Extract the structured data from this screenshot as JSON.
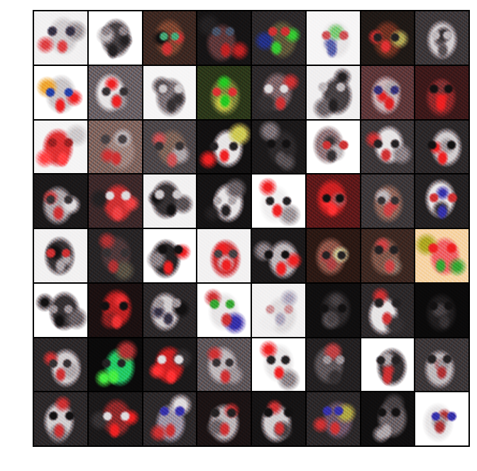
{
  "grid": {
    "rows": 8,
    "cols": 8,
    "tiles": [
      {
        "bg": "#f2f2f2",
        "face": "#cfcfcf",
        "a1": "#d44",
        "a2": "#334",
        "a3": "#999"
      },
      {
        "bg": "#ffffff",
        "face": "#444444",
        "a1": "#222",
        "a2": "#888",
        "a3": "#bbb"
      },
      {
        "bg": "#3a2a22",
        "face": "#7a4a32",
        "a1": "#c33",
        "a2": "#4a7",
        "a3": "#111"
      },
      {
        "bg": "#151515",
        "face": "#5a3a3a",
        "a1": "#b22",
        "a2": "#456",
        "a3": "#222"
      },
      {
        "bg": "#2a2a2a",
        "face": "#5b5b3a",
        "a1": "#3c3",
        "a2": "#c33",
        "a3": "#238"
      },
      {
        "bg": "#f6f6f6",
        "face": "#e6e6e6",
        "a1": "#56a",
        "a2": "#c55",
        "a3": "#7c7"
      },
      {
        "bg": "#1e1a16",
        "face": "#6a3322",
        "a1": "#d33",
        "a2": "#222",
        "a3": "#aa5"
      },
      {
        "bg": "#3a3a3a",
        "face": "#cfcfcf",
        "a1": "#555",
        "a2": "#bbb",
        "a3": "#333"
      },
      {
        "bg": "#ffffff",
        "face": "#c8c8c8",
        "a1": "#e22",
        "a2": "#24a",
        "a3": "#ea3"
      },
      {
        "bg": "#666666",
        "face": "#e6e6e6",
        "a1": "#e22",
        "a2": "#333",
        "a3": "#999"
      },
      {
        "bg": "#f6f6f6",
        "face": "#777777",
        "a1": "#333",
        "a2": "#ccc",
        "a3": "#555"
      },
      {
        "bg": "#2a3a1a",
        "face": "#7a8a3a",
        "a1": "#2c2",
        "a2": "#d33",
        "a3": "#cc4"
      },
      {
        "bg": "#2a2a2a",
        "face": "#7a6a6a",
        "a1": "#c33",
        "a2": "#ddd",
        "a3": "#333"
      },
      {
        "bg": "#f0f0f0",
        "face": "#444444",
        "a1": "#222",
        "a2": "#bbb",
        "a3": "#666"
      },
      {
        "bg": "#5a3a3a",
        "face": "#c8b8b8",
        "a1": "#d22",
        "a2": "#337",
        "a3": "#aaa"
      },
      {
        "bg": "#3a1a1a",
        "face": "#8a2a2a",
        "a1": "#e22",
        "a2": "#111",
        "a3": "#733"
      },
      {
        "bg": "#f5f5f5",
        "face": "#d33",
        "a1": "#f44",
        "a2": "#922",
        "a3": "#ccc"
      },
      {
        "bg": "#7a6a60",
        "face": "#9a8a80",
        "a1": "#c33",
        "a2": "#444",
        "a3": "#bbb"
      },
      {
        "bg": "#4a4a4a",
        "face": "#7a6a5a",
        "a1": "#c55",
        "a2": "#333",
        "a3": "#aaa"
      },
      {
        "bg": "#111111",
        "face": "#e6e6e6",
        "a1": "#e22",
        "a2": "#222",
        "a3": "#cc5"
      },
      {
        "bg": "#1a1a1a",
        "face": "#2a2a2a",
        "a1": "#555",
        "a2": "#111",
        "a3": "#777"
      },
      {
        "bg": "#ffffff",
        "face": "#8a7a7a",
        "a1": "#333",
        "a2": "#c33",
        "a3": "#bbb"
      },
      {
        "bg": "#3a3a3a",
        "face": "#e6e6e6",
        "a1": "#c33",
        "a2": "#222",
        "a3": "#888"
      },
      {
        "bg": "#2a2a2a",
        "face": "#cfcfcf",
        "a1": "#e22",
        "a2": "#111",
        "a3": "#999"
      },
      {
        "bg": "#1a1a1a",
        "face": "#aaaaaa",
        "a1": "#c33",
        "a2": "#333",
        "a3": "#ddd"
      },
      {
        "bg": "#3a2a2a",
        "face": "#c33",
        "a1": "#e44",
        "a2": "#ddd",
        "a3": "#222"
      },
      {
        "bg": "#f2f2f2",
        "face": "#333333",
        "a1": "#111",
        "a2": "#ccc",
        "a3": "#555"
      },
      {
        "bg": "#141414",
        "face": "#e6e6e6",
        "a1": "#222",
        "a2": "#aaa",
        "a3": "#666"
      },
      {
        "bg": "#ffffff",
        "face": "#f0f0f0",
        "a1": "#e22",
        "a2": "#222",
        "a3": "#999"
      },
      {
        "bg": "#5a1a1a",
        "face": "#c22",
        "a1": "#f33",
        "a2": "#111",
        "a3": "#a55"
      },
      {
        "bg": "#3a3a3a",
        "face": "#8a6a5a",
        "a1": "#c44",
        "a2": "#333",
        "a3": "#bbb"
      },
      {
        "bg": "#222222",
        "face": "#e6e6e6",
        "a1": "#33a",
        "a2": "#c33",
        "a3": "#333"
      },
      {
        "bg": "#f2f2f2",
        "face": "#333333",
        "a1": "#aaa",
        "a2": "#c33",
        "a3": "#111"
      },
      {
        "bg": "#262626",
        "face": "#4a3a3a",
        "a1": "#a33",
        "a2": "#333",
        "a3": "#554"
      },
      {
        "bg": "#ffffff",
        "face": "#222222",
        "a1": "#e22",
        "a2": "#111",
        "a3": "#888"
      },
      {
        "bg": "#f2f2f2",
        "face": "#c33",
        "a1": "#e22",
        "a2": "#444",
        "a3": "#ccc"
      },
      {
        "bg": "#1a1a1a",
        "face": "#bbbbbb",
        "a1": "#e22",
        "a2": "#111",
        "a3": "#888"
      },
      {
        "bg": "#2a1a14",
        "face": "#8a5a4a",
        "a1": "#a44",
        "a2": "#222",
        "a3": "#cc9"
      },
      {
        "bg": "#3a2a22",
        "face": "#7a5a4a",
        "a1": "#c44",
        "a2": "#222",
        "a3": "#876"
      },
      {
        "bg": "#f6d6a6",
        "face": "#e66",
        "a1": "#3a3",
        "a2": "#e22",
        "a3": "#aa2"
      },
      {
        "bg": "#ffffff",
        "face": "#333333",
        "a1": "#111",
        "a2": "#999",
        "a3": "#666"
      },
      {
        "bg": "#1a1111",
        "face": "#b22",
        "a1": "#e33",
        "a2": "#111",
        "a3": "#822"
      },
      {
        "bg": "#2a2a2a",
        "face": "#cfcfcf",
        "a1": "#334",
        "a2": "#999",
        "a3": "#111"
      },
      {
        "bg": "#ffffff",
        "face": "#e6e6e6",
        "a1": "#c33",
        "a2": "#3a3",
        "a3": "#33a"
      },
      {
        "bg": "#f2f2f2",
        "face": "#dddddd",
        "a1": "#aab",
        "a2": "#c99",
        "a3": "#eee"
      },
      {
        "bg": "#0f0f0f",
        "face": "#2a2a2a",
        "a1": "#444",
        "a2": "#111",
        "a3": "#555"
      },
      {
        "bg": "#2a2a2a",
        "face": "#e6e6e6",
        "a1": "#c33",
        "a2": "#222",
        "a3": "#333"
      },
      {
        "bg": "#0a0a0a",
        "face": "#1e1e1e",
        "a1": "#333",
        "a2": "#111",
        "a3": "#444"
      },
      {
        "bg": "#2a2a2a",
        "face": "#cfcfcf",
        "a1": "#c33",
        "a2": "#333",
        "a3": "#aaa"
      },
      {
        "bg": "#0a0a0a",
        "face": "#2c6",
        "a1": "#4e4",
        "a2": "#222",
        "a3": "#a33"
      },
      {
        "bg": "#1a1a1a",
        "face": "#c22",
        "a1": "#f33",
        "a2": "#ddd",
        "a3": "#333"
      },
      {
        "bg": "#5a5a5a",
        "face": "#bbbbbb",
        "a1": "#c33",
        "a2": "#333",
        "a3": "#999"
      },
      {
        "bg": "#ffffff",
        "face": "#e6e6e6",
        "a1": "#e22",
        "a2": "#222",
        "a3": "#888"
      },
      {
        "bg": "#222222",
        "face": "#5a5a5a",
        "a1": "#333",
        "a2": "#999",
        "a3": "#b44"
      },
      {
        "bg": "#ffffff",
        "face": "#333333",
        "a1": "#c33",
        "a2": "#222",
        "a3": "#aaa"
      },
      {
        "bg": "#3a3a3a",
        "face": "#bbbbbb",
        "a1": "#a33",
        "a2": "#222",
        "a3": "#999"
      },
      {
        "bg": "#2a2a2a",
        "face": "#cfcfcf",
        "a1": "#c33",
        "a2": "#111",
        "a3": "#777"
      },
      {
        "bg": "#1a1a1a",
        "face": "#8a2a2a",
        "a1": "#e22",
        "a2": "#ddd",
        "a3": "#333"
      },
      {
        "bg": "#2a2a2a",
        "face": "#9a9aa6",
        "a1": "#c33",
        "a2": "#33a",
        "a3": "#ddd"
      },
      {
        "bg": "#1a1414",
        "face": "#b8b8b8",
        "a1": "#c33",
        "a2": "#222",
        "a3": "#666"
      },
      {
        "bg": "#141414",
        "face": "#cfcfcf",
        "a1": "#c33",
        "a2": "#111",
        "a3": "#444"
      },
      {
        "bg": "#2a2a2a",
        "face": "#6a5a6a",
        "a1": "#c33",
        "a2": "#33a",
        "a3": "#aa4"
      },
      {
        "bg": "#0f0f0f",
        "face": "#666666",
        "a1": "#aaa",
        "a2": "#111",
        "a3": "#444"
      },
      {
        "bg": "#ffffff",
        "face": "#e6e6e6",
        "a1": "#a33",
        "a2": "#33a",
        "a3": "#999"
      }
    ]
  }
}
